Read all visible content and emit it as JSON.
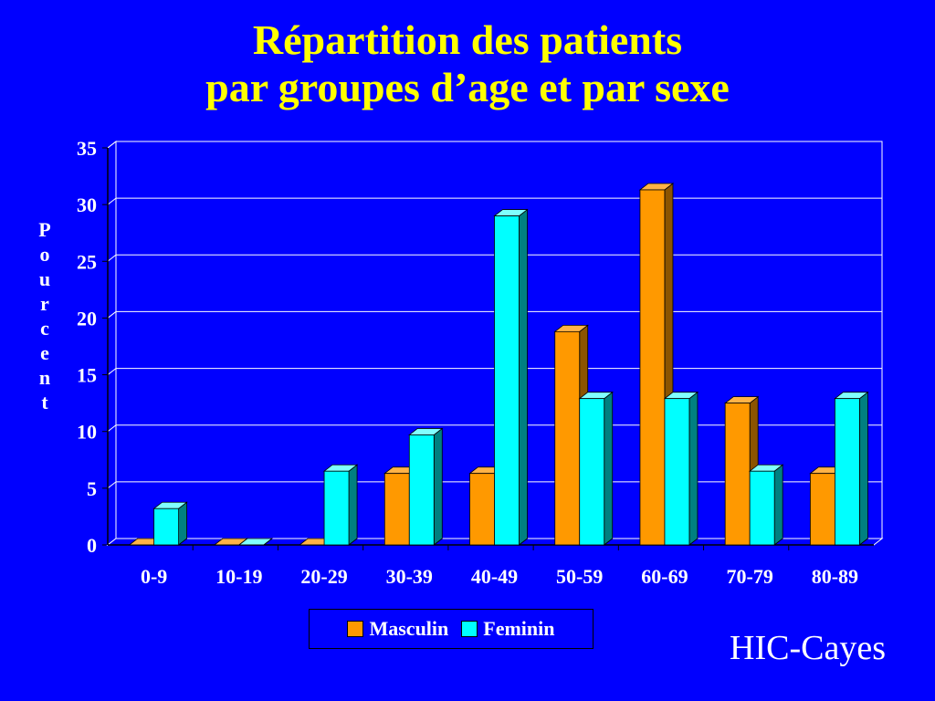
{
  "chart_data": {
    "type": "bar",
    "title_line1": "Répartition des patients",
    "title_line2": "par groupes d’age et par sexe",
    "ylabel": "Pourcent",
    "categories": [
      "0-9",
      "10-19",
      "20-29",
      "30-39",
      "40-49",
      "50-59",
      "60-69",
      "70-79",
      "80-89"
    ],
    "series": [
      {
        "name": "Masculin",
        "color": "#ff9900",
        "values": [
          0,
          0,
          0,
          6.3,
          6.3,
          18.8,
          31.3,
          12.5,
          6.3
        ]
      },
      {
        "name": "Feminin",
        "color": "#00ffff",
        "values": [
          3.2,
          0,
          6.5,
          9.7,
          29.0,
          12.9,
          12.9,
          6.5,
          12.9
        ]
      }
    ],
    "ylim": [
      0,
      35
    ],
    "yticks": [
      0,
      5,
      10,
      15,
      20,
      25,
      30,
      35
    ],
    "grid": true,
    "legend_position": "bottom"
  },
  "footer": "HIC-Cayes"
}
